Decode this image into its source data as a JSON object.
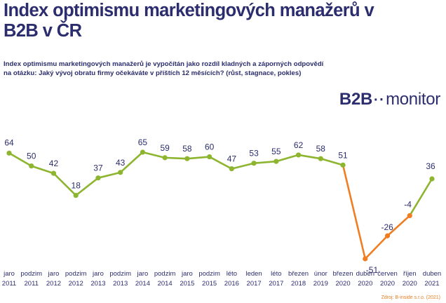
{
  "header": {
    "title": "Index optimismu marketingových manažerů v B2B v ČR",
    "subtitle": "Index optimismu marketingových manažerů je vypočítán jako rozdíl kladných a záporných odpovědí na otázku: Jaký vývoj obratu firmy očekáváte v příštích 12 měsících? (růst, stagnace, pokles)"
  },
  "brand": {
    "left": "B2B",
    "dots": "·‧",
    "right": "monitor"
  },
  "source": "Zdroj: B-inside s.r.o. (2021)",
  "colors": {
    "green": "#8db52f",
    "orange": "#f07d22",
    "text": "#2b2d6e"
  },
  "chart_data": {
    "type": "line",
    "title": "Index optimismu marketingových manažerů v B2B v ČR",
    "categories": [
      [
        "jaro",
        "2011"
      ],
      [
        "podzim",
        "2011"
      ],
      [
        "jaro",
        "2012"
      ],
      [
        "podzim",
        "2012"
      ],
      [
        "jaro",
        "2013"
      ],
      [
        "podzim",
        "2013"
      ],
      [
        "jaro",
        "2014"
      ],
      [
        "podzim",
        "2014"
      ],
      [
        "jaro",
        "2015"
      ],
      [
        "podzim",
        "2015"
      ],
      [
        "léto",
        "2016"
      ],
      [
        "leden",
        "2017"
      ],
      [
        "léto",
        "2017"
      ],
      [
        "březen",
        "2018"
      ],
      [
        "únor",
        "2019"
      ],
      [
        "březen",
        "2020"
      ],
      [
        "duben",
        "2020"
      ],
      [
        "červen",
        "2020"
      ],
      [
        "říjen",
        "2020"
      ],
      [
        "duben",
        "2021"
      ]
    ],
    "values": [
      64,
      50,
      42,
      18,
      37,
      43,
      65,
      59,
      58,
      60,
      47,
      53,
      55,
      62,
      58,
      51,
      -51,
      -26,
      -4,
      36
    ],
    "segment_colors": [
      "green",
      "green",
      "green",
      "green",
      "green",
      "green",
      "green",
      "green",
      "green",
      "green",
      "green",
      "green",
      "green",
      "green",
      "green",
      "orange",
      "orange",
      "orange",
      "green"
    ],
    "ylim": [
      -60,
      70
    ],
    "grid": false,
    "legend": "none"
  }
}
